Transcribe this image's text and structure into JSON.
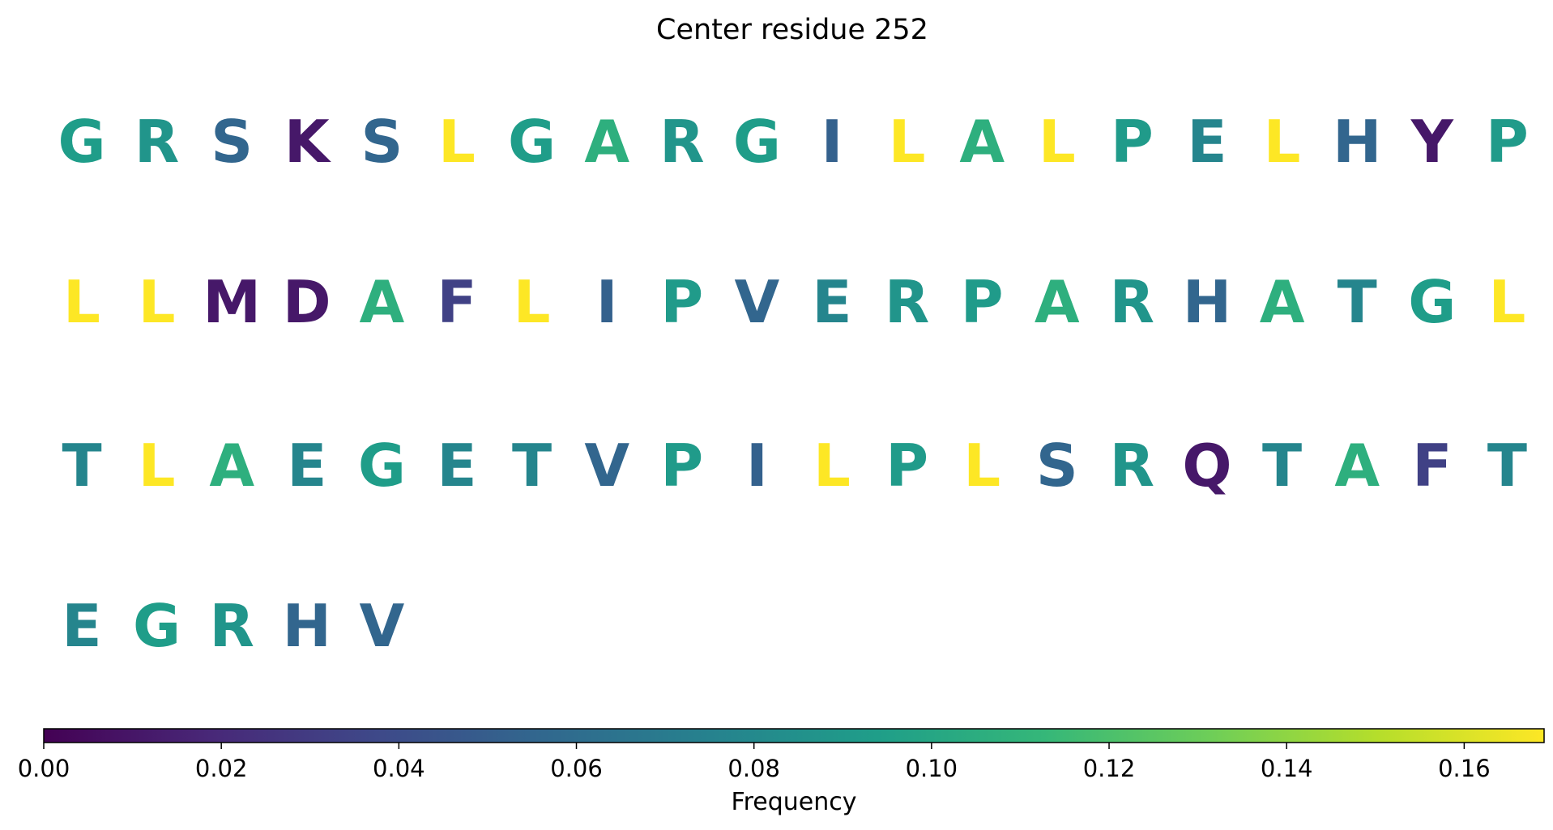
{
  "chart_data": {
    "type": "heatmap",
    "title": "Center residue 252",
    "residues": [
      {
        "letter": "G",
        "value": 0.093
      },
      {
        "letter": "R",
        "value": 0.088
      },
      {
        "letter": "S",
        "value": 0.055
      },
      {
        "letter": "K",
        "value": 0.011
      },
      {
        "letter": "S",
        "value": 0.055
      },
      {
        "letter": "L",
        "value": 0.169
      },
      {
        "letter": "G",
        "value": 0.093
      },
      {
        "letter": "A",
        "value": 0.107
      },
      {
        "letter": "R",
        "value": 0.088
      },
      {
        "letter": "G",
        "value": 0.093
      },
      {
        "letter": "I",
        "value": 0.052
      },
      {
        "letter": "L",
        "value": 0.169
      },
      {
        "letter": "A",
        "value": 0.107
      },
      {
        "letter": "L",
        "value": 0.169
      },
      {
        "letter": "P",
        "value": 0.092
      },
      {
        "letter": "E",
        "value": 0.077
      },
      {
        "letter": "L",
        "value": 0.169
      },
      {
        "letter": "H",
        "value": 0.055
      },
      {
        "letter": "Y",
        "value": 0.011
      },
      {
        "letter": "P",
        "value": 0.092
      },
      {
        "letter": "L",
        "value": 0.169
      },
      {
        "letter": "L",
        "value": 0.169
      },
      {
        "letter": "M",
        "value": 0.011
      },
      {
        "letter": "D",
        "value": 0.011
      },
      {
        "letter": "A",
        "value": 0.107
      },
      {
        "letter": "F",
        "value": 0.033
      },
      {
        "letter": "L",
        "value": 0.169
      },
      {
        "letter": "I",
        "value": 0.052
      },
      {
        "letter": "P",
        "value": 0.092
      },
      {
        "letter": "V",
        "value": 0.055
      },
      {
        "letter": "E",
        "value": 0.077
      },
      {
        "letter": "R",
        "value": 0.088
      },
      {
        "letter": "P",
        "value": 0.092
      },
      {
        "letter": "A",
        "value": 0.107
      },
      {
        "letter": "R",
        "value": 0.088
      },
      {
        "letter": "H",
        "value": 0.055
      },
      {
        "letter": "A",
        "value": 0.107
      },
      {
        "letter": "T",
        "value": 0.077
      },
      {
        "letter": "G",
        "value": 0.093
      },
      {
        "letter": "L",
        "value": 0.169
      },
      {
        "letter": "T",
        "value": 0.077
      },
      {
        "letter": "L",
        "value": 0.169
      },
      {
        "letter": "A",
        "value": 0.107
      },
      {
        "letter": "E",
        "value": 0.077
      },
      {
        "letter": "G",
        "value": 0.093
      },
      {
        "letter": "E",
        "value": 0.077
      },
      {
        "letter": "T",
        "value": 0.077
      },
      {
        "letter": "V",
        "value": 0.055
      },
      {
        "letter": "P",
        "value": 0.092
      },
      {
        "letter": "I",
        "value": 0.052
      },
      {
        "letter": "L",
        "value": 0.169
      },
      {
        "letter": "P",
        "value": 0.092
      },
      {
        "letter": "L",
        "value": 0.169
      },
      {
        "letter": "S",
        "value": 0.055
      },
      {
        "letter": "R",
        "value": 0.088
      },
      {
        "letter": "Q",
        "value": 0.011
      },
      {
        "letter": "T",
        "value": 0.077
      },
      {
        "letter": "A",
        "value": 0.107
      },
      {
        "letter": "F",
        "value": 0.033
      },
      {
        "letter": "T",
        "value": 0.077
      },
      {
        "letter": "E",
        "value": 0.077
      },
      {
        "letter": "G",
        "value": 0.093
      },
      {
        "letter": "R",
        "value": 0.088
      },
      {
        "letter": "H",
        "value": 0.055
      },
      {
        "letter": "V",
        "value": 0.055
      }
    ],
    "colorbar": {
      "label": "Frequency",
      "range": [
        0,
        0.169
      ],
      "ticks": [
        0.0,
        0.02,
        0.04,
        0.06,
        0.08,
        0.1,
        0.12,
        0.14,
        0.16
      ],
      "tick_labels": [
        "0.00",
        "0.02",
        "0.04",
        "0.06",
        "0.08",
        "0.10",
        "0.12",
        "0.14",
        "0.16"
      ],
      "colormap": "viridis"
    },
    "colormap_stops": [
      "#440154",
      "#482878",
      "#3e4989",
      "#31688e",
      "#26828e",
      "#1f9e89",
      "#35b779",
      "#6ece58",
      "#b5de2b",
      "#fde725"
    ]
  }
}
